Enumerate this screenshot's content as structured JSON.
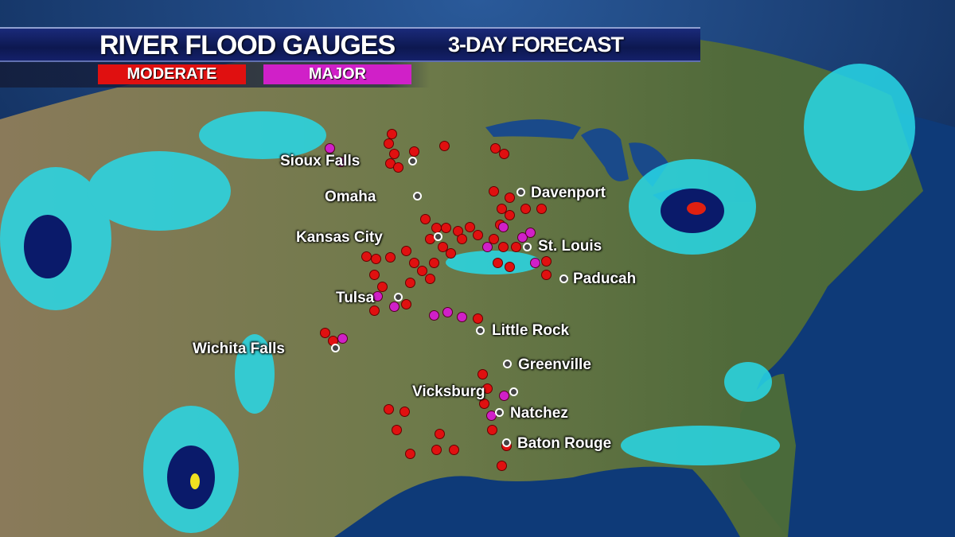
{
  "header": {
    "title": "RIVER FLOOD GAUGES",
    "subtitle": "3-DAY FORECAST"
  },
  "legend": [
    {
      "label": "MODERATE",
      "color": "#e01010"
    },
    {
      "label": "MAJOR",
      "color": "#d020c8"
    }
  ],
  "cities": [
    "Sioux Falls",
    "Omaha",
    "Davenport",
    "Kansas City",
    "St. Louis",
    "Paducah",
    "Tulsa",
    "Little Rock",
    "Wichita Falls",
    "Greenville",
    "Vicksburg",
    "Natchez",
    "Baton Rouge"
  ],
  "colors": {
    "ocean": "#0a2a5a",
    "land": "#7d7a55",
    "precip_light": "#28d8e8",
    "precip_heavy": "#0a1a6a",
    "moderate": "#e01010",
    "major": "#d020c8"
  }
}
